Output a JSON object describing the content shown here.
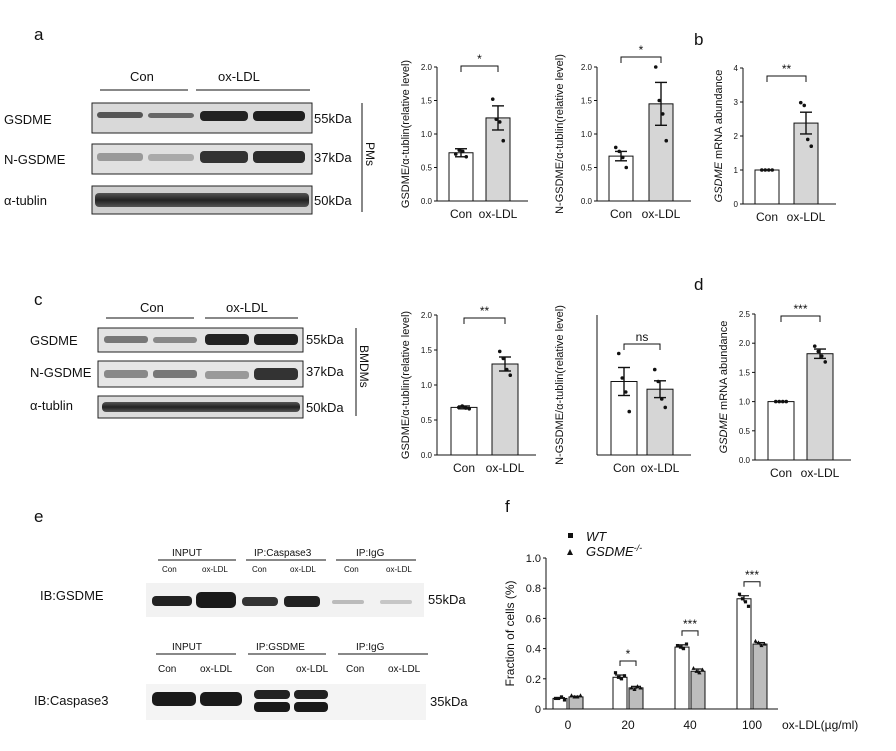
{
  "panels": {
    "a": "a",
    "b": "b",
    "c": "c",
    "d": "d",
    "e": "e",
    "f": "f"
  },
  "blot_a": {
    "groups": [
      "Con",
      "ox-LDL"
    ],
    "rows": [
      "GSDME",
      "N-GSDME",
      "α-tublin"
    ],
    "sizes": [
      "55kDa",
      "37kDa",
      "50kDa"
    ],
    "cell_type": "PMs"
  },
  "blot_c": {
    "groups": [
      "Con",
      "ox-LDL"
    ],
    "rows": [
      "GSDME",
      "N-GSDME",
      "α-tublin"
    ],
    "sizes": [
      "55kDa",
      "37kDa",
      "50kDa"
    ],
    "cell_type": "BMDMs"
  },
  "blot_e": {
    "ib1": "IB:GSDME",
    "ib2": "IB:Caspase3",
    "top_heads": [
      "INPUT",
      "IP:Caspase3",
      "IP:IgG"
    ],
    "bottom_heads": [
      "INPUT",
      "IP:GSDME",
      "IP:IgG"
    ],
    "lanes": [
      "Con",
      "ox-LDL",
      "Con",
      "ox-LDL",
      "Con",
      "ox-LDL"
    ],
    "size1": "55kDa",
    "size2": "35kDa"
  },
  "chart_data": [
    {
      "id": "a1",
      "type": "bar",
      "categories": [
        "Con",
        "ox-LDL"
      ],
      "values": [
        0.72,
        1.24
      ],
      "errors": [
        0.06,
        0.18
      ],
      "points": [
        [
          0.7,
          0.76,
          0.74,
          0.66
        ],
        [
          1.52,
          1.22,
          1.18,
          0.9
        ]
      ],
      "ylabel": "GSDME/α-tublin(relative level)",
      "ylim": [
        0,
        2.0
      ],
      "yticks": [
        "0.0",
        "0.5",
        "1.0",
        "1.5",
        "2.0"
      ],
      "sig": "*"
    },
    {
      "id": "a2",
      "type": "bar",
      "categories": [
        "Con",
        "ox-LDL"
      ],
      "values": [
        0.67,
        1.45
      ],
      "errors": [
        0.07,
        0.32
      ],
      "points": [
        [
          0.8,
          0.74,
          0.65,
          0.5
        ],
        [
          2.0,
          1.5,
          1.3,
          0.9
        ]
      ],
      "ylabel": "N-GSDME/α-tublin(relative level)",
      "ylim": [
        0,
        2.0
      ],
      "yticks": [
        "0.0",
        "0.5",
        "1.0",
        "1.5",
        "2.0"
      ],
      "sig": "*"
    },
    {
      "id": "b",
      "type": "bar",
      "categories": [
        "Con",
        "ox-LDL"
      ],
      "values": [
        1.0,
        2.38
      ],
      "errors": [
        0,
        0.32
      ],
      "points": [
        [
          1.0,
          1.0,
          1.0,
          1.0
        ],
        [
          2.98,
          2.9,
          1.9,
          1.7
        ]
      ],
      "ylabel": "GSDME mRNA abundance",
      "ylabel_italic": "GSDME",
      "ylabel_rest": " mRNA abundance",
      "ylim": [
        0,
        4
      ],
      "yticks": [
        "0",
        "1",
        "2",
        "3",
        "4"
      ],
      "sig": "**"
    },
    {
      "id": "c1",
      "type": "bar",
      "categories": [
        "Con",
        "ox-LDL"
      ],
      "values": [
        0.68,
        1.3
      ],
      "errors": [
        0.02,
        0.1
      ],
      "points": [
        [
          0.68,
          0.7,
          0.67,
          0.66
        ],
        [
          1.48,
          1.38,
          1.22,
          1.14
        ]
      ],
      "ylabel": "GSDME/α-tublin(relative level)",
      "ylim": [
        0,
        2.0
      ],
      "yticks": [
        "0.0",
        "0.5",
        "1.0",
        "1.5",
        "2.0"
      ],
      "sig": "**"
    },
    {
      "id": "c2",
      "type": "bar",
      "categories": [
        "Con",
        "ox-LDL"
      ],
      "values": [
        1.05,
        0.94
      ],
      "errors": [
        0.2,
        0.12
      ],
      "points": [
        [
          1.45,
          1.1,
          0.9,
          0.62
        ],
        [
          1.22,
          1.05,
          0.8,
          0.68
        ]
      ],
      "ylabel": "N-GSDME/α-tublin(relative level)",
      "ylim": [
        0,
        2.0
      ],
      "yticks": [],
      "sig": "ns"
    },
    {
      "id": "d",
      "type": "bar",
      "categories": [
        "Con",
        "ox-LDL"
      ],
      "values": [
        1.0,
        1.82
      ],
      "errors": [
        0,
        0.08
      ],
      "points": [
        [
          1.0,
          1.0,
          1.0,
          1.0
        ],
        [
          1.95,
          1.86,
          1.78,
          1.68
        ]
      ],
      "ylabel": "GSDME mRNA abundance",
      "ylabel_italic": "GSDME",
      "ylabel_rest": " mRNA abundance",
      "ylim": [
        0,
        2.5
      ],
      "yticks": [
        "0.0",
        "0.5",
        "1.0",
        "1.5",
        "2.0",
        "2.5"
      ],
      "sig": "***"
    },
    {
      "id": "f",
      "type": "bar",
      "categories": [
        "0",
        "20",
        "40",
        "100"
      ],
      "series": [
        {
          "name": "WT",
          "values": [
            0.07,
            0.21,
            0.41,
            0.73
          ],
          "errors": [
            0.005,
            0.015,
            0.015,
            0.02
          ],
          "points": [
            [
              0.07,
              0.07,
              0.08,
              0.06
            ],
            [
              0.24,
              0.21,
              0.2,
              0.22
            ],
            [
              0.42,
              0.41,
              0.4,
              0.43
            ],
            [
              0.76,
              0.73,
              0.71,
              0.68
            ]
          ]
        },
        {
          "name": "GSDME",
          "values": [
            0.08,
            0.14,
            0.25,
            0.43
          ],
          "errors": [
            0.005,
            0.01,
            0.015,
            0.01
          ],
          "points": [
            [
              0.09,
              0.08,
              0.08,
              0.09
            ],
            [
              0.14,
              0.13,
              0.15,
              0.14
            ],
            [
              0.27,
              0.25,
              0.24,
              0.26
            ],
            [
              0.45,
              0.44,
              0.42,
              0.43
            ]
          ]
        }
      ],
      "legend": [
        "WT",
        "GSDME",
        "-/-"
      ],
      "ylabel": "Fraction of cells (%)",
      "xlabel": "ox-LDL(µg/ml)",
      "ylim": [
        0,
        1.0
      ],
      "yticks": [
        "0",
        "0.2",
        "0.4",
        "0.6",
        "0.8",
        "1.0"
      ],
      "sig": [
        "",
        "*",
        "***",
        "***"
      ]
    }
  ]
}
